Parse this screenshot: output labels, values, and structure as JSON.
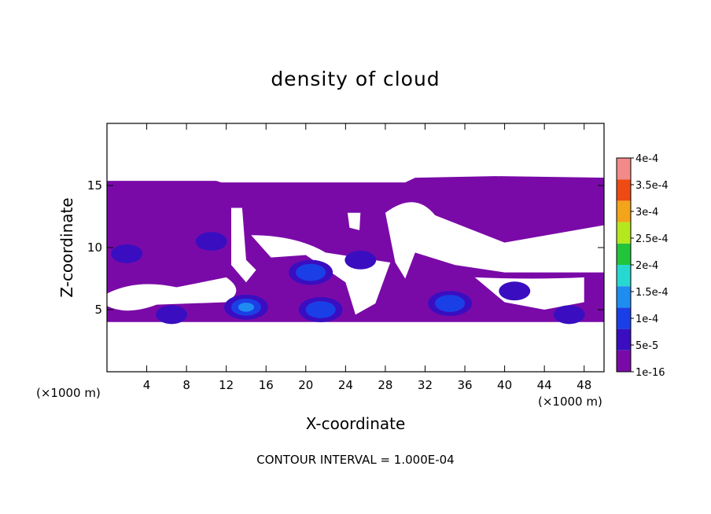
{
  "chart_data": {
    "type": "heatmap",
    "title": "density of cloud",
    "xlabel": "X-coordinate",
    "ylabel": "Z-coordinate",
    "x_unit": "(×1000 m)",
    "z_unit": "(×1000 m)",
    "xlim": [
      0,
      50
    ],
    "ylim": [
      0,
      20
    ],
    "x_ticks": [
      4,
      8,
      12,
      16,
      20,
      24,
      28,
      32,
      36,
      40,
      44,
      48
    ],
    "y_ticks": [
      5,
      10,
      15
    ],
    "footer": "CONTOUR INTERVAL = 1.000E-04",
    "colorbar": {
      "labels": [
        "1e-16",
        "5e-5",
        "1e-4",
        "1.5e-4",
        "2e-4",
        "2.5e-4",
        "3e-4",
        "3.5e-4",
        "4e-4"
      ],
      "colors": [
        "#7a0aa8",
        "#3a0ec0",
        "#1b3fe6",
        "#1f8cf0",
        "#27d8d0",
        "#22c43a",
        "#b4e81c",
        "#f2a41a",
        "#ee4a14",
        "#f28a8a"
      ]
    },
    "cloud_top_z": 15.5,
    "cloud_base_z": 4,
    "blobs": [
      {
        "x": 14,
        "z": 5.2,
        "level": 3
      },
      {
        "x": 21.5,
        "z": 5.0,
        "level": 2
      },
      {
        "x": 34.5,
        "z": 5.5,
        "level": 2
      },
      {
        "x": 6.5,
        "z": 4.6,
        "level": 1
      },
      {
        "x": 10.5,
        "z": 10.5,
        "level": 1
      },
      {
        "x": 20.5,
        "z": 8.0,
        "level": 2
      },
      {
        "x": 2,
        "z": 9.5,
        "level": 1
      },
      {
        "x": 25.5,
        "z": 9.0,
        "level": 1
      },
      {
        "x": 46.5,
        "z": 4.6,
        "level": 1
      },
      {
        "x": 41,
        "z": 6.5,
        "level": 1
      }
    ],
    "grid": false
  }
}
